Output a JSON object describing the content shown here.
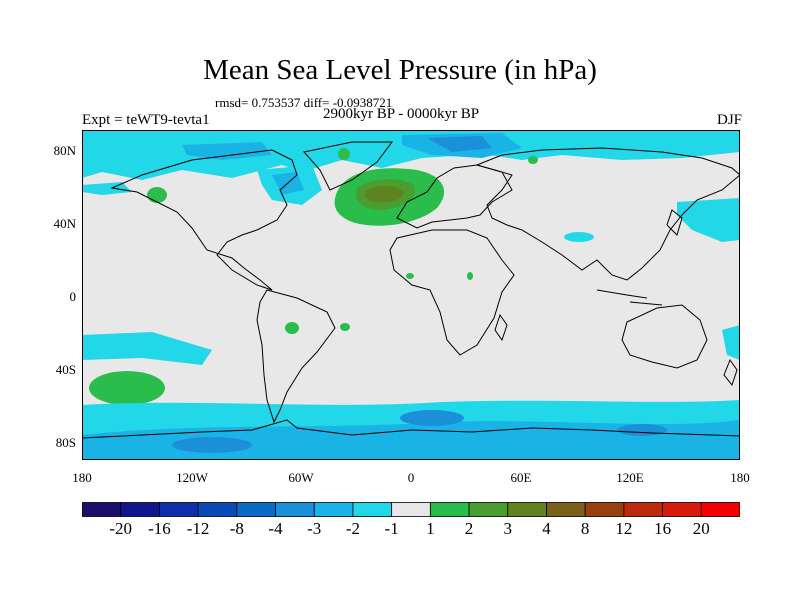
{
  "title": "Mean Sea Level Pressure (in hPa)",
  "stats": "rmsd= 0.753537 diff= -0.0938721",
  "period": "2900kyr BP - 0000kyr BP",
  "experiment": "Expt = teWT9-tevta1",
  "season": "DJF",
  "lat_labels": [
    "80N",
    "40N",
    "0",
    "40S",
    "80S"
  ],
  "lon_labels": [
    "180",
    "120W",
    "60W",
    "0",
    "60E",
    "120E",
    "180"
  ],
  "colorbar": {
    "labels": [
      "-20",
      "-16",
      "-12",
      "-8",
      "-4",
      "-3",
      "-2",
      "-1",
      "1",
      "2",
      "3",
      "4",
      "8",
      "12",
      "16",
      "20"
    ],
    "colors": [
      "#1a0f6b",
      "#101590",
      "#0f2eab",
      "#0a49b8",
      "#0d69c6",
      "#1b8fd8",
      "#19b3e6",
      "#22d8e8",
      "#e8e8e8",
      "#2bbd4b",
      "#4a9d2e",
      "#5f8320",
      "#7a6018",
      "#984010",
      "#bb2a0c",
      "#d81a0a",
      "#f00000"
    ]
  }
}
